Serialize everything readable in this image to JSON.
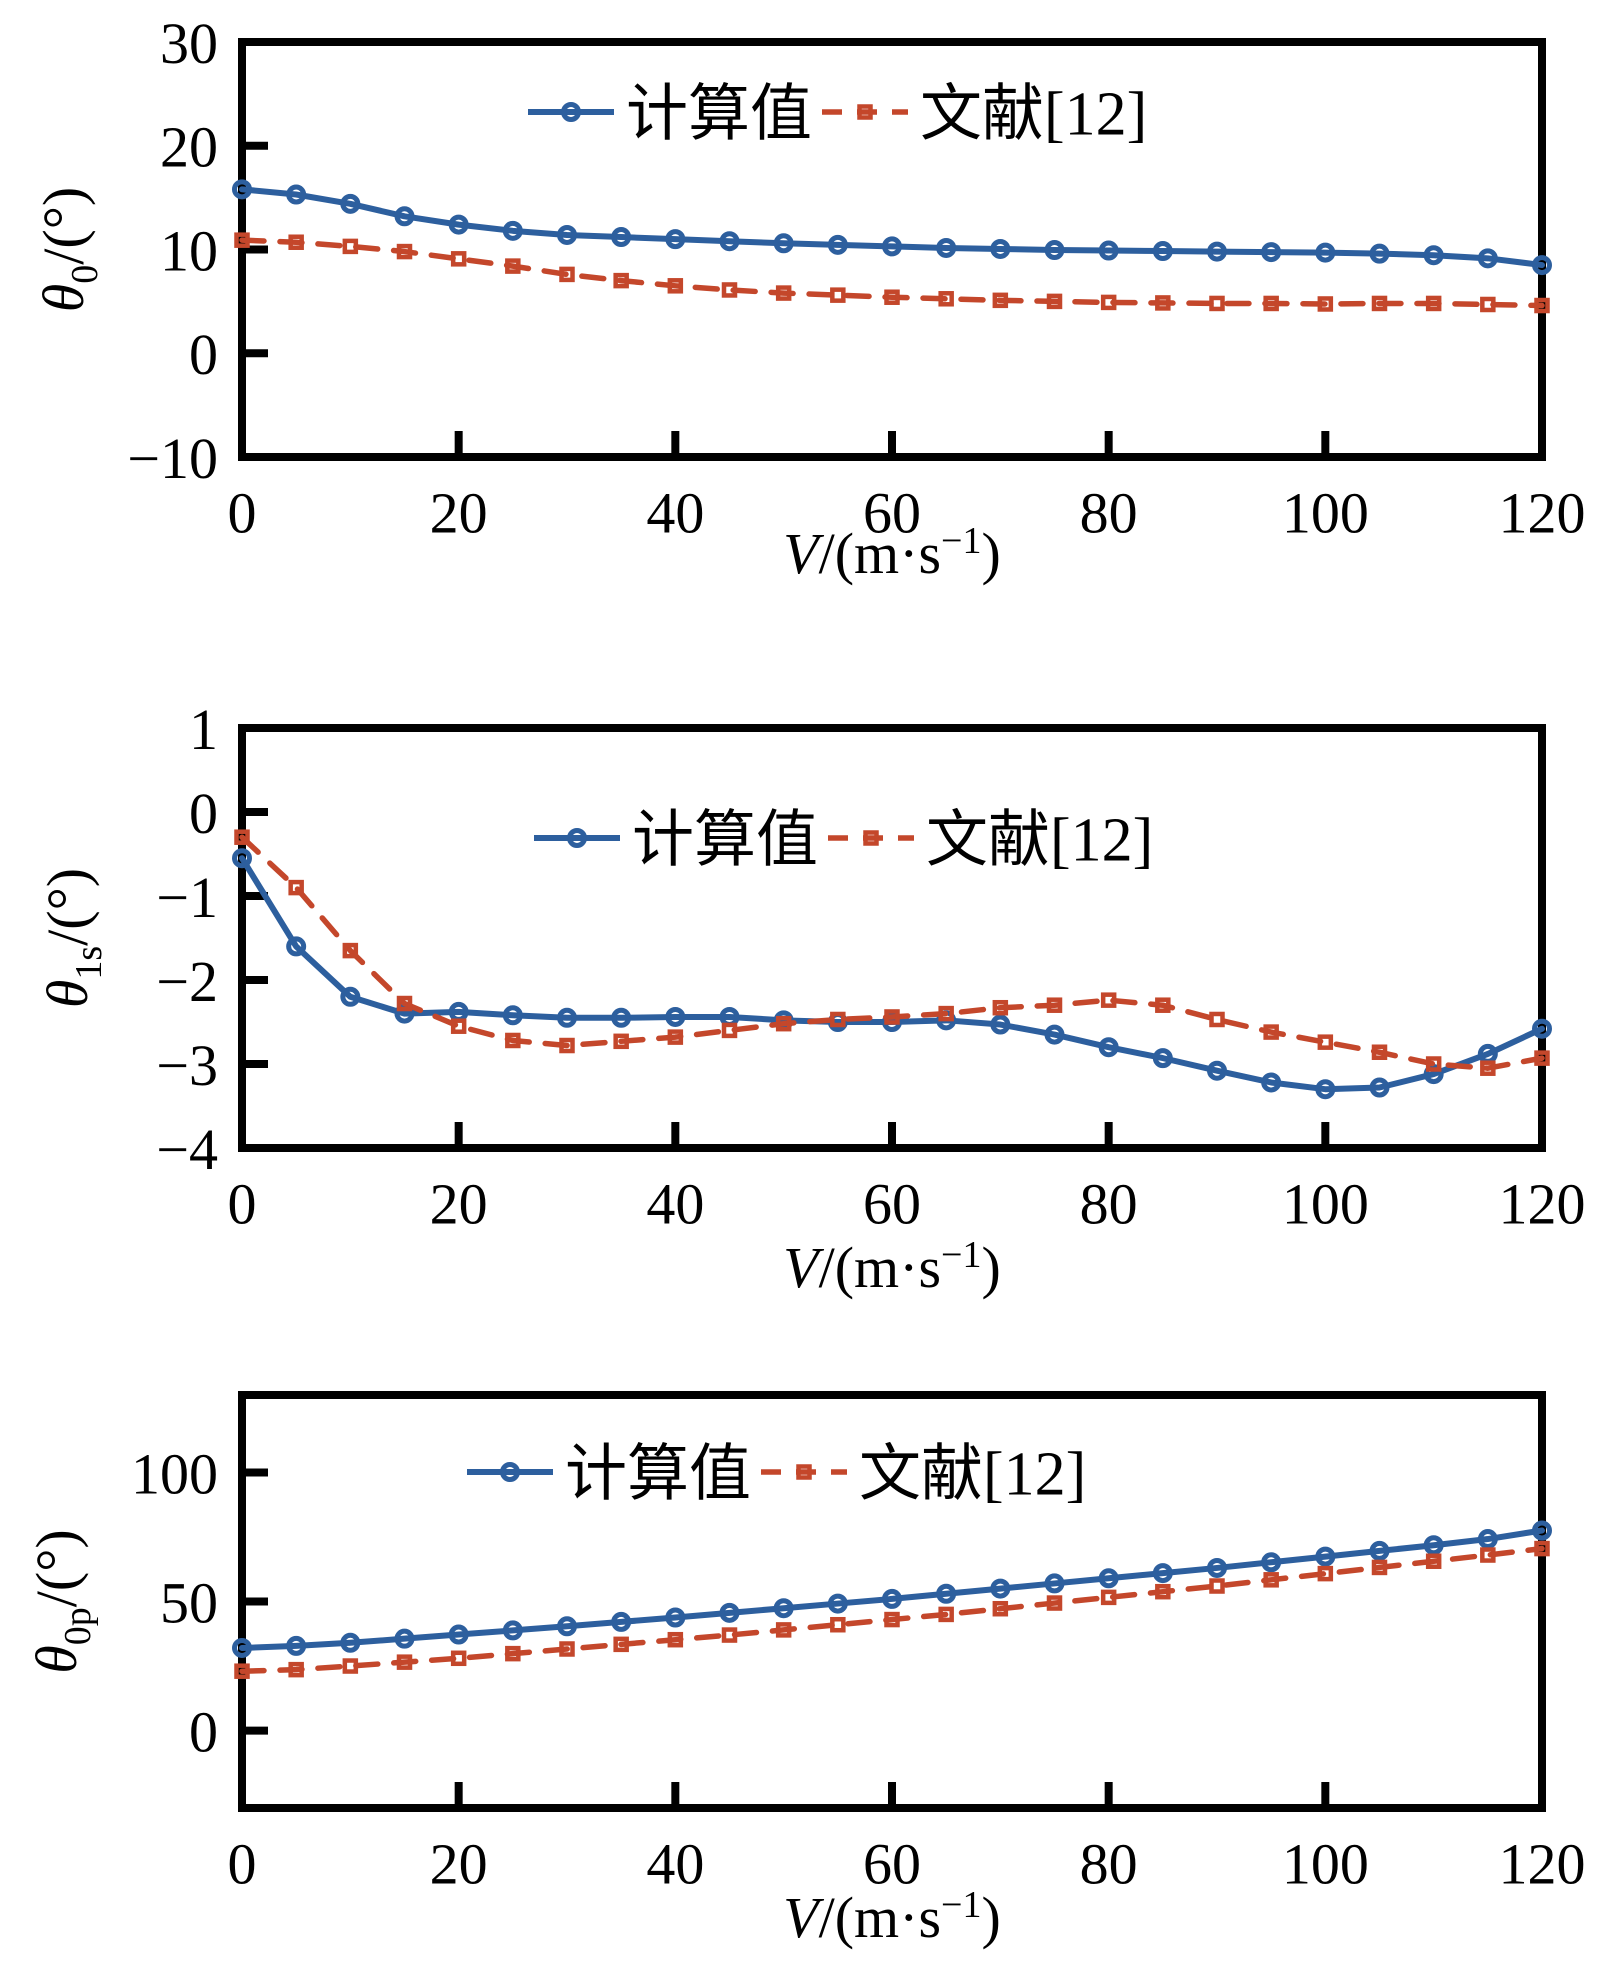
{
  "figure": {
    "background": "#ffffff",
    "x_points": [
      0,
      5,
      10,
      15,
      20,
      25,
      30,
      35,
      40,
      45,
      50,
      55,
      60,
      65,
      70,
      75,
      80,
      85,
      90,
      95,
      100,
      105,
      110,
      115,
      120
    ]
  },
  "colors": {
    "calculated": "#2d5f9e",
    "reference": "#c4472b",
    "axis": "#000000",
    "text": "#000000"
  },
  "legend": {
    "calculated_label": "计算值",
    "reference_label": "文献[12]"
  },
  "chart_data": [
    {
      "type": "line",
      "title": "",
      "xlabel": {
        "var": "V",
        "pre": "/(m·s",
        "sup": "−1",
        "post": ")",
        "text": "V/(m·s−1)"
      },
      "ylabel": {
        "sym": "θ",
        "sub": "0",
        "unit": "/(°)",
        "text": "θ0/(°)"
      },
      "xlim": [
        0,
        120
      ],
      "ylim": [
        -10,
        30
      ],
      "grid": false,
      "legend_position": "inside-top-center",
      "xticks": {
        "values": [
          0,
          20,
          40,
          60,
          80,
          100,
          120
        ],
        "labels": [
          "0",
          "20",
          "40",
          "60",
          "80",
          "100",
          "120"
        ]
      },
      "yticks": {
        "values": [
          30,
          20,
          10,
          0,
          -10
        ],
        "labels": [
          "30",
          "20",
          "10",
          "0",
          "−10"
        ]
      },
      "series": [
        {
          "name": "计算值",
          "marker": "circle",
          "line": "solid",
          "color": "#2d5f9e",
          "values": [
            15.8,
            15.3,
            14.4,
            13.2,
            12.4,
            11.8,
            11.4,
            11.2,
            11.0,
            10.8,
            10.6,
            10.45,
            10.3,
            10.15,
            10.05,
            9.95,
            9.9,
            9.85,
            9.8,
            9.75,
            9.7,
            9.6,
            9.45,
            9.15,
            8.5
          ]
        },
        {
          "name": "文献[12]",
          "marker": "square",
          "line": "dashed",
          "color": "#c4472b",
          "values": [
            10.9,
            10.7,
            10.3,
            9.8,
            9.1,
            8.4,
            7.6,
            7.0,
            6.5,
            6.1,
            5.8,
            5.6,
            5.4,
            5.25,
            5.1,
            5.0,
            4.9,
            4.85,
            4.8,
            4.8,
            4.75,
            4.8,
            4.8,
            4.7,
            4.6
          ]
        }
      ]
    },
    {
      "type": "line",
      "title": "",
      "xlabel": {
        "var": "V",
        "pre": "/(m·s",
        "sup": "−1",
        "post": ")",
        "text": "V/(m·s−1)"
      },
      "ylabel": {
        "sym": "θ",
        "sub": "1s",
        "unit": "/(°)",
        "text": "θ1s/(°)"
      },
      "xlim": [
        0,
        120
      ],
      "ylim": [
        -4,
        1
      ],
      "grid": false,
      "legend_position": "inside-upper-middle",
      "xticks": {
        "values": [
          0,
          20,
          40,
          60,
          80,
          100,
          120
        ],
        "labels": [
          "0",
          "20",
          "40",
          "60",
          "80",
          "100",
          "120"
        ]
      },
      "yticks": {
        "values": [
          1,
          0,
          -1,
          -2,
          -3,
          -4
        ],
        "labels": [
          "1",
          "0",
          "−1",
          "−2",
          "−3",
          "−4"
        ]
      },
      "series": [
        {
          "name": "计算值",
          "marker": "circle",
          "line": "solid",
          "color": "#2d5f9e",
          "values": [
            -0.55,
            -1.6,
            -2.2,
            -2.4,
            -2.38,
            -2.42,
            -2.45,
            -2.45,
            -2.44,
            -2.44,
            -2.48,
            -2.5,
            -2.5,
            -2.48,
            -2.53,
            -2.65,
            -2.8,
            -2.93,
            -3.08,
            -3.22,
            -3.3,
            -3.28,
            -3.12,
            -2.88,
            -2.58
          ]
        },
        {
          "name": "文献[12]",
          "marker": "square",
          "line": "dashed",
          "color": "#c4472b",
          "values": [
            -0.3,
            -0.9,
            -1.65,
            -2.28,
            -2.55,
            -2.72,
            -2.78,
            -2.73,
            -2.68,
            -2.6,
            -2.52,
            -2.47,
            -2.44,
            -2.4,
            -2.33,
            -2.3,
            -2.24,
            -2.3,
            -2.47,
            -2.62,
            -2.74,
            -2.86,
            -3.0,
            -3.05,
            -2.93
          ]
        }
      ]
    },
    {
      "type": "line",
      "title": "",
      "xlabel": {
        "var": "V",
        "pre": "/(m·s",
        "sup": "−1",
        "post": ")",
        "text": "V/(m·s−1)"
      },
      "ylabel": {
        "sym": "θ",
        "sub": "0p",
        "unit": "/(°)",
        "text": "θ0p/(°)"
      },
      "xlim": [
        0,
        120
      ],
      "ylim": [
        -30,
        130
      ],
      "grid": false,
      "legend_position": "inside-top-center",
      "xticks": {
        "values": [
          0,
          20,
          40,
          60,
          80,
          100,
          120
        ],
        "labels": [
          "0",
          "20",
          "40",
          "60",
          "80",
          "100",
          "120"
        ]
      },
      "yticks": {
        "values": [
          100,
          50,
          0
        ],
        "labels": [
          "100",
          "50",
          "0"
        ]
      },
      "series": [
        {
          "name": "计算值",
          "marker": "circle",
          "line": "solid",
          "color": "#2d5f9e",
          "values": [
            32,
            32.8,
            34,
            35.6,
            37.2,
            38.8,
            40.4,
            42.1,
            43.8,
            45.6,
            47.4,
            49.2,
            51,
            53,
            55,
            57,
            59,
            61,
            63,
            65.2,
            67.4,
            69.6,
            71.8,
            74.2,
            77.5
          ]
        },
        {
          "name": "文献[12]",
          "marker": "square",
          "line": "dashed",
          "color": "#c4472b",
          "values": [
            23,
            23.6,
            25,
            26.5,
            28,
            29.8,
            31.6,
            33.4,
            35.2,
            37,
            39,
            41,
            43,
            45,
            47.2,
            49.4,
            51.6,
            53.8,
            56,
            58.4,
            60.8,
            63.2,
            65.6,
            68,
            70.5
          ]
        }
      ]
    }
  ]
}
